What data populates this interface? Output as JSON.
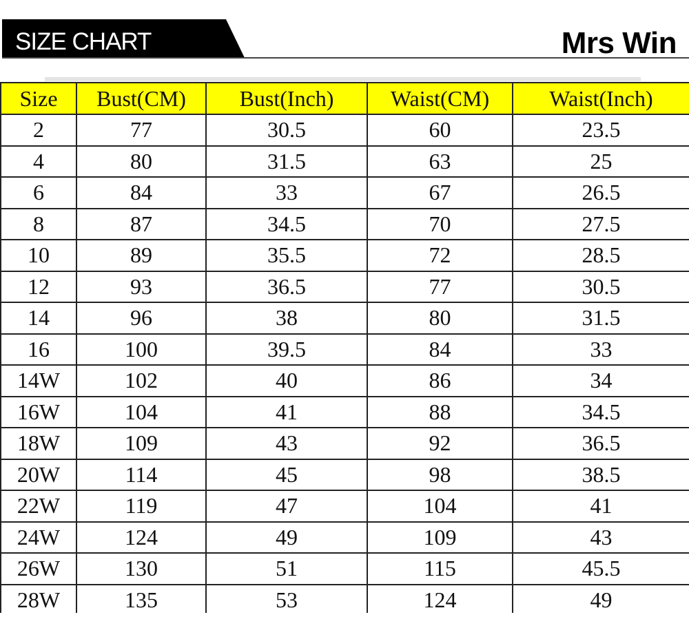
{
  "header": {
    "banner_label": "SIZE CHART",
    "brand": "Mrs Win"
  },
  "colors": {
    "header_bg": "#ffff00",
    "banner_bg": "#000000"
  },
  "table": {
    "columns": [
      "Size",
      "Bust(CM)",
      "Bust(Inch)",
      "Waist(CM)",
      "Waist(Inch)"
    ],
    "rows": [
      [
        "2",
        "77",
        "30.5",
        "60",
        "23.5"
      ],
      [
        "4",
        "80",
        "31.5",
        "63",
        "25"
      ],
      [
        "6",
        "84",
        "33",
        "67",
        "26.5"
      ],
      [
        "8",
        "87",
        "34.5",
        "70",
        "27.5"
      ],
      [
        "10",
        "89",
        "35.5",
        "72",
        "28.5"
      ],
      [
        "12",
        "93",
        "36.5",
        "77",
        "30.5"
      ],
      [
        "14",
        "96",
        "38",
        "80",
        "31.5"
      ],
      [
        "16",
        "100",
        "39.5",
        "84",
        "33"
      ],
      [
        "14W",
        "102",
        "40",
        "86",
        "34"
      ],
      [
        "16W",
        "104",
        "41",
        "88",
        "34.5"
      ],
      [
        "18W",
        "109",
        "43",
        "92",
        "36.5"
      ],
      [
        "20W",
        "114",
        "45",
        "98",
        "38.5"
      ],
      [
        "22W",
        "119",
        "47",
        "104",
        "41"
      ],
      [
        "24W",
        "124",
        "49",
        "109",
        "43"
      ],
      [
        "26W",
        "130",
        "51",
        "115",
        "45.5"
      ],
      [
        "28W",
        "135",
        "53",
        "124",
        "49"
      ]
    ]
  }
}
